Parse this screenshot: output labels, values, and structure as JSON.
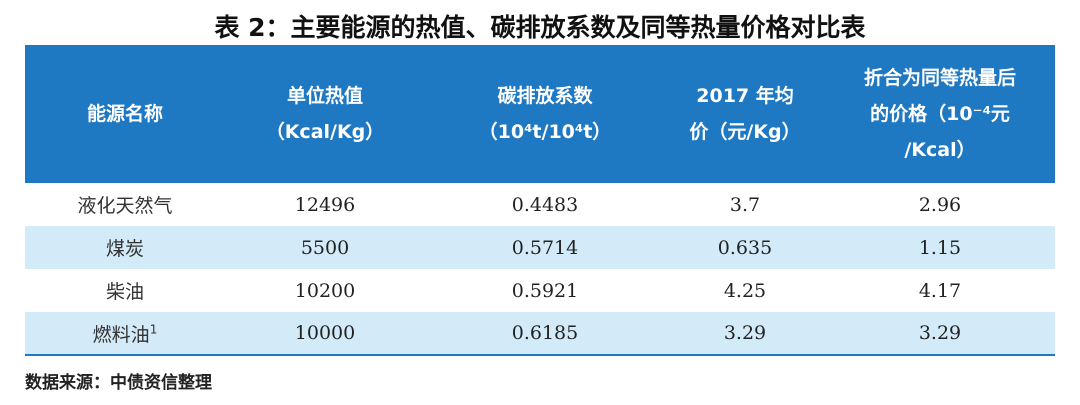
{
  "title": "表 2：主要能源的热值、碳排放系数及同等热量价格对比表",
  "columns": [
    {
      "lines": [
        "能源名称"
      ]
    },
    {
      "lines": [
        "单位热值",
        "（Kcal/Kg）"
      ]
    },
    {
      "lines": [
        "碳排放系数",
        "（10⁴t/10⁴t）"
      ]
    },
    {
      "lines": [
        "2017 年均",
        "价（元/Kg）"
      ]
    },
    {
      "lines": [
        "折合为同等热量后",
        "的价格（10⁻⁴元",
        "/Kcal）"
      ]
    }
  ],
  "rows": [
    {
      "name": "液化天然气",
      "note": "",
      "heat": "12496",
      "carbon": "0.4483",
      "price": "3.7",
      "equiv": "2.96"
    },
    {
      "name": "煤炭",
      "note": "",
      "heat": "5500",
      "carbon": "0.5714",
      "price": "0.635",
      "equiv": "1.15"
    },
    {
      "name": "柴油",
      "note": "",
      "heat": "10200",
      "carbon": "0.5921",
      "price": "4.25",
      "equiv": "4.17"
    },
    {
      "name": "燃料油",
      "note": "1",
      "heat": "10000",
      "carbon": "0.6185",
      "price": "3.29",
      "equiv": "3.29"
    }
  ],
  "source": "数据来源：中债资信整理",
  "colors": {
    "header_bg": "#1e78c2",
    "alt_row_bg": "#d3eaf8"
  }
}
